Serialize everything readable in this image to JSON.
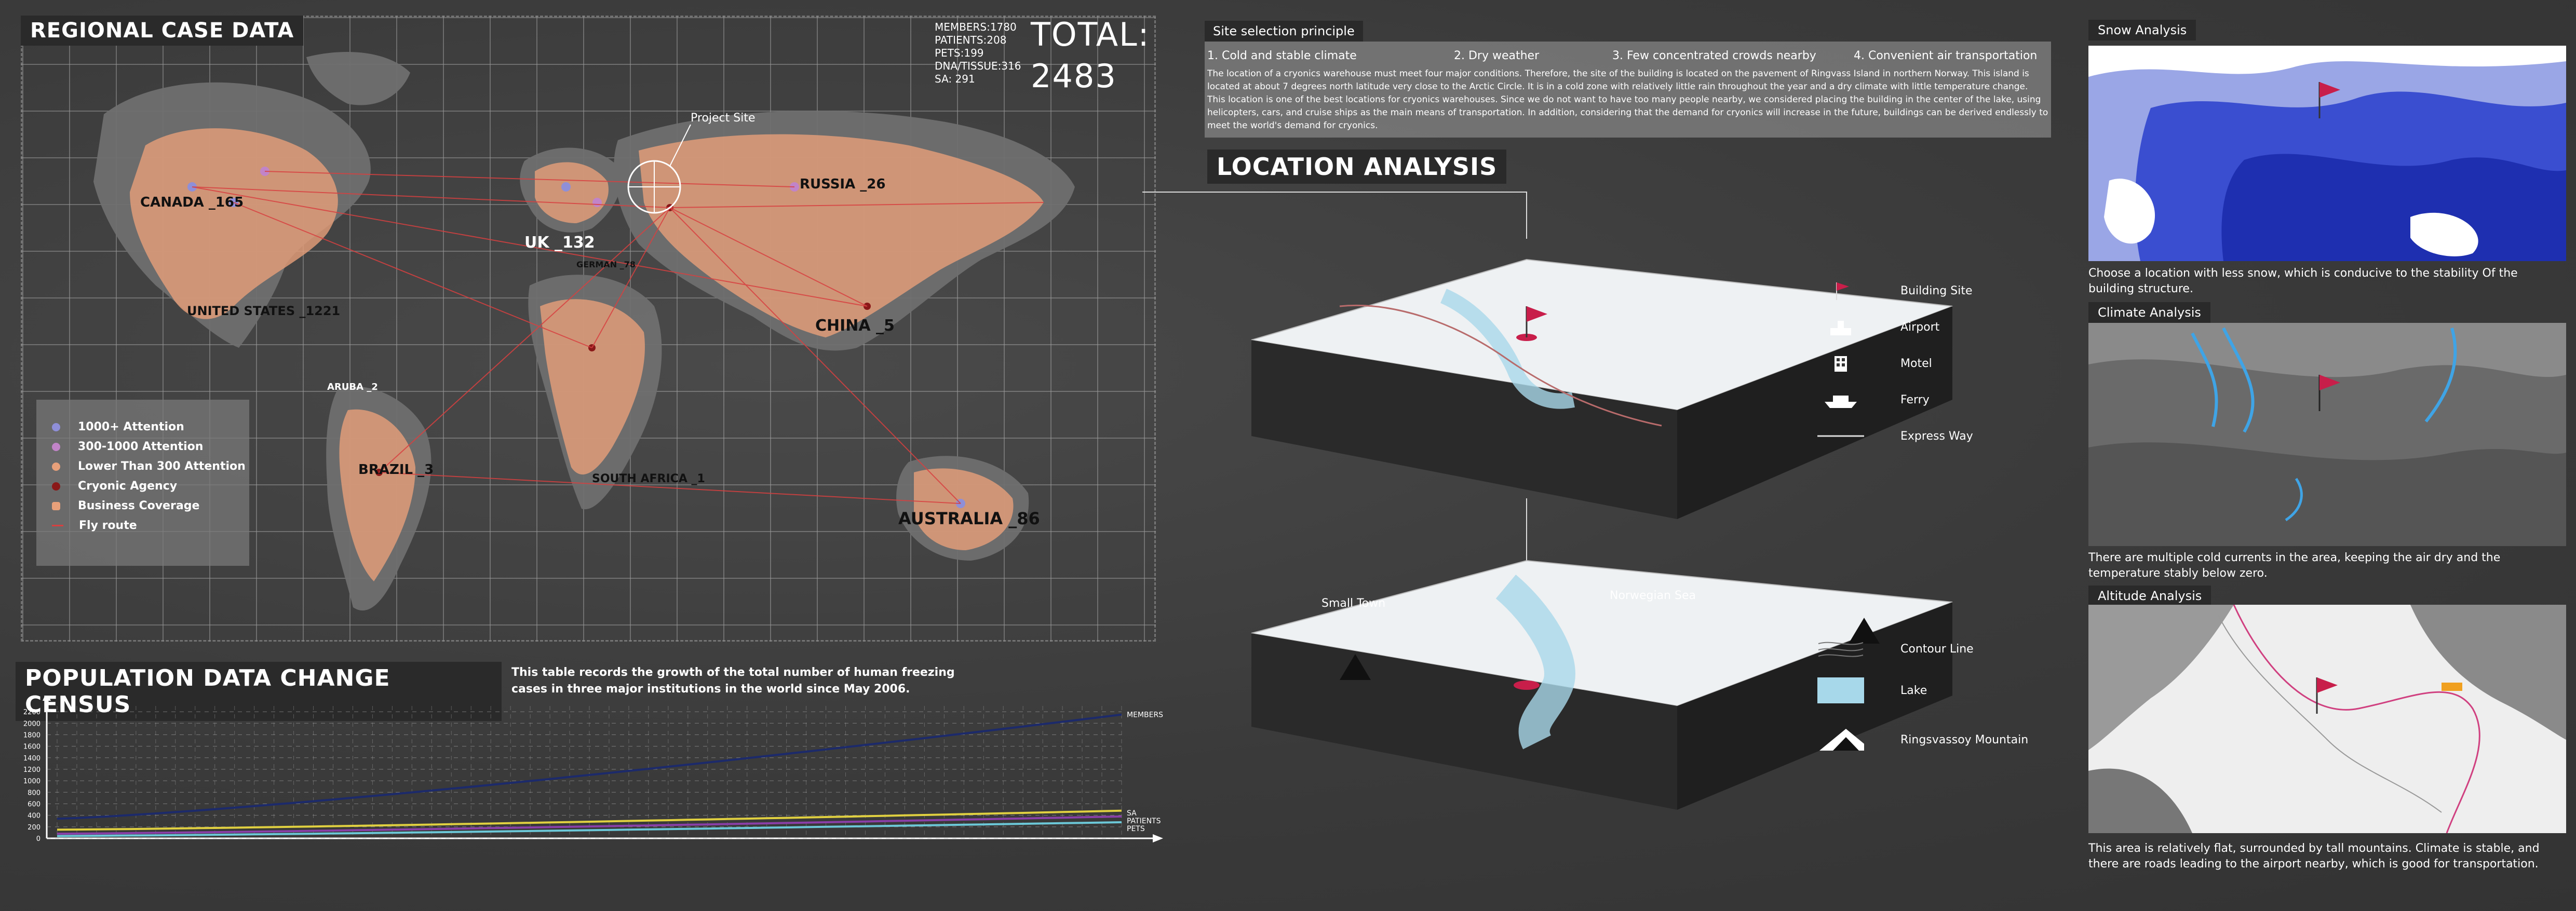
{
  "map": {
    "title": "REGIONAL CASE DATA",
    "project_site": "Project Site",
    "countries": [
      {
        "label": "CANADA _165"
      },
      {
        "label": "UK _132"
      },
      {
        "label": "RUSSIA _26"
      },
      {
        "label": "UNITED STATES _1221"
      },
      {
        "label": "GERMAN _78"
      },
      {
        "label": "CHINA _5"
      },
      {
        "label": "ARUBA _2"
      },
      {
        "label": "BRAZIL _3"
      },
      {
        "label": "SOUTH AFRICA _1"
      },
      {
        "label": "AUSTRALIA _86"
      }
    ],
    "legend": [
      {
        "label": "1000+ Attention",
        "color": "#8f8fd8"
      },
      {
        "label": "300-1000 Attention",
        "color": "#c184c8"
      },
      {
        "label": "Lower Than 300 Attention",
        "color": "#e8a07a"
      },
      {
        "label": "Cryonic Agency",
        "color": "#8a1818"
      },
      {
        "label": "Business Coverage",
        "color": "#e8a07a"
      },
      {
        "label": "Fly route",
        "color": "#d84040"
      }
    ]
  },
  "stats": {
    "members": "MEMBERS:1780",
    "patients": "PATIENTS:208",
    "pets": "PETS:199",
    "dna": "DNA/TISSUE:316",
    "sa": "SA: 291",
    "total_label": "TOTAL:",
    "total_value": "2483"
  },
  "census": {
    "title": "POPULATION DATA CHANGE CENSUS",
    "description": "This table records the growth of the total number of human freezing cases in three major institutions in the world since May 2006."
  },
  "chart_data": {
    "type": "line",
    "title": "POPULATION DATA CHANGE CENSUS",
    "xlabel": "",
    "ylabel": "",
    "ylim": [
      0,
      2300
    ],
    "yticks": [
      0,
      200,
      400,
      600,
      800,
      1000,
      1200,
      1400,
      1600,
      1800,
      2000,
      2200
    ],
    "x_count": 55,
    "series": [
      {
        "name": "MEMBERS",
        "color": "#1c2a6b",
        "start": 340,
        "end": 2150
      },
      {
        "name": "SA",
        "color": "#e0d040",
        "start": 150,
        "end": 480
      },
      {
        "name": "PATIENTS",
        "color": "#8a3fa8",
        "start": 80,
        "end": 380
      },
      {
        "name": "PETS",
        "color": "#6cc8d8",
        "start": 40,
        "end": 280
      }
    ]
  },
  "site": {
    "title": "Site selection principle",
    "principles": [
      "1. Cold and stable climate",
      "2. Dry weather",
      "3. Few concentrated crowds nearby",
      "4. Convenient air transportation"
    ],
    "text": "The location of a cryonics warehouse must meet four major conditions. Therefore, the site of the building is located on the pavement of Ringvass Island in northern Norway. This island is located at about 7 degrees north latitude very close to the Arctic Circle. It is in a cold zone with relatively little rain throughout the year and a dry climate with little temperature change. This location is one of the best locations for cryonics warehouses. Since we do not want to have too many people nearby, we considered placing the building in the center of the lake, using helicopters, cars, and cruise ships as the main means of transportation. In addition, considering that the demand for cryonics will increase in the future, buildings can be derived endlessly to meet the world's demand for cryonics."
  },
  "location": {
    "title": "LOCATION ANALYSIS",
    "small_town": "Small Town",
    "norwegian_sea": "Norwegian Sea",
    "key_upper": [
      {
        "label": "Building Site",
        "icon": "flag-icon"
      },
      {
        "label": "Airport",
        "icon": "airport-icon"
      },
      {
        "label": "Motel",
        "icon": "motel-icon"
      },
      {
        "label": "Ferry",
        "icon": "ferry-icon"
      },
      {
        "label": "Express Way",
        "icon": "road-icon"
      }
    ],
    "key_lower": [
      {
        "label": "Contour Line",
        "icon": "contour-icon"
      },
      {
        "label": "Lake",
        "icon": "lake-icon",
        "color": "#a7d8ea"
      },
      {
        "label": "Ringsvassoy Mountain",
        "icon": "mountain-icon"
      }
    ]
  },
  "snow": {
    "title": "Snow Analysis",
    "text": "Choose a location with less snow, which is conducive to the stability Of the building structure."
  },
  "climate": {
    "title": "Climate Analysis",
    "text": "There are multiple cold currents in the area, keeping the air dry and the temperature stably below zero."
  },
  "altitude": {
    "title": "Altitude Analysis",
    "text": "This area is relatively flat, surrounded by tall mountains. Climate is stable, and there are roads leading to the airport nearby, which is good for transportation."
  }
}
